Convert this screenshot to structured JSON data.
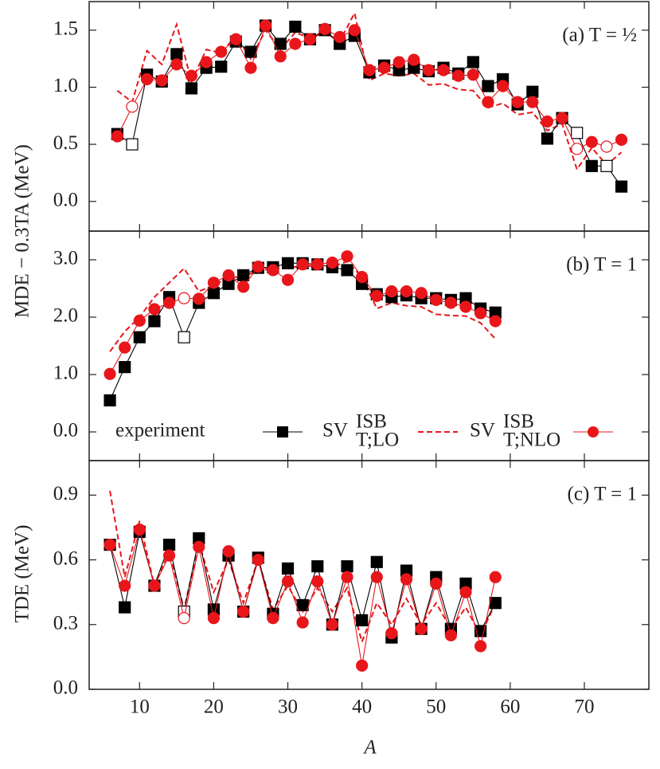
{
  "chart_data": [
    {
      "type": "line",
      "annotation": "(a) T = ½",
      "ylabel": "MDE − 0.3TA (MeV)",
      "xlim": [
        3.2,
        78.7
      ],
      "ylim": [
        -0.26,
        1.75
      ],
      "yticks": [
        {
          "value": 0,
          "label": "0.0"
        },
        0.5,
        {
          "value": 1,
          "label": "1.0"
        },
        1.5
      ],
      "x": [
        7,
        9,
        11,
        13,
        15,
        17,
        19,
        21,
        23,
        25,
        27,
        29,
        31,
        33,
        35,
        37,
        39,
        41,
        43,
        45,
        47,
        49,
        51,
        53,
        55,
        57,
        59,
        61,
        63,
        65,
        67,
        69,
        71,
        73,
        75
      ],
      "series": [
        {
          "style": "dashed",
          "color": "#e8161b",
          "values": [
            0.97,
            0.87,
            1.32,
            1.2,
            1.55,
            1.05,
            1.33,
            1.3,
            1.45,
            1.25,
            1.5,
            1.33,
            1.48,
            1.43,
            1.48,
            1.4,
            1.65,
            1.06,
            1.12,
            1.1,
            1.12,
            1.02,
            1.03,
            0.98,
            0.97,
            0.82,
            0.86,
            0.76,
            0.78,
            0.62,
            0.68,
            0.28,
            0.47,
            0.32,
            0.43
          ]
        },
        {
          "style": "square",
          "color": "#000000",
          "hollow": [
            1,
            31,
            33
          ],
          "values": [
            0.59,
            0.5,
            1.11,
            1.05,
            1.29,
            0.99,
            1.17,
            1.18,
            1.4,
            1.31,
            1.54,
            1.38,
            1.53,
            1.42,
            1.5,
            1.38,
            1.45,
            1.13,
            1.19,
            1.15,
            1.17,
            1.14,
            1.17,
            1.12,
            1.22,
            1.01,
            1.07,
            0.85,
            0.96,
            0.55,
            0.73,
            0.6,
            0.31,
            0.31,
            0.13
          ]
        },
        {
          "style": "circle",
          "color": "#e8161b",
          "hollow": [
            1,
            31,
            33
          ],
          "values": [
            0.57,
            0.83,
            1.07,
            1.06,
            1.2,
            1.1,
            1.22,
            1.31,
            1.42,
            1.17,
            1.54,
            1.27,
            1.38,
            1.42,
            1.51,
            1.44,
            1.5,
            1.15,
            1.17,
            1.22,
            1.24,
            1.15,
            1.15,
            1.1,
            1.11,
            0.87,
            1.01,
            0.87,
            0.87,
            0.7,
            0.73,
            0.46,
            0.52,
            0.48,
            0.54
          ]
        }
      ]
    },
    {
      "type": "line",
      "annotation": "(b) T = 1",
      "legend": "bottom-left",
      "xlim": [
        3.2,
        78.7
      ],
      "ylim": [
        -0.5,
        3.5
      ],
      "yticks": [
        {
          "value": 0,
          "label": "0.0"
        },
        {
          "value": 1,
          "label": "1.0"
        },
        {
          "value": 2,
          "label": "2.0"
        },
        {
          "value": 3,
          "label": "3.0"
        }
      ],
      "x": [
        6,
        8,
        10,
        12,
        14,
        16,
        18,
        20,
        22,
        24,
        26,
        28,
        30,
        32,
        34,
        36,
        38,
        40,
        42,
        44,
        46,
        48,
        50,
        52,
        54,
        56,
        58
      ],
      "series": [
        {
          "name": "SV",
          "name_sup": "ISB",
          "name_sub": "T;LO",
          "style": "dashed",
          "color": "#e8161b",
          "values": [
            1.4,
            1.75,
            2.0,
            2.35,
            2.6,
            2.85,
            2.45,
            2.55,
            2.7,
            2.7,
            2.82,
            2.83,
            2.87,
            2.88,
            2.9,
            2.88,
            2.97,
            2.7,
            2.15,
            2.25,
            2.2,
            2.18,
            2.05,
            2.03,
            2.02,
            1.9,
            1.62
          ]
        },
        {
          "name": "experiment",
          "style": "square",
          "color": "#000000",
          "hollow": [
            5
          ],
          "values": [
            0.55,
            1.13,
            1.65,
            1.93,
            2.35,
            1.65,
            2.25,
            2.42,
            2.58,
            2.73,
            2.86,
            2.87,
            2.94,
            2.94,
            2.92,
            2.87,
            2.82,
            2.58,
            2.4,
            2.35,
            2.38,
            2.33,
            2.33,
            2.3,
            2.33,
            2.15,
            2.08
          ]
        },
        {
          "name": "SV",
          "name_sup": "ISB",
          "name_sub": "T;NLO",
          "style": "circle",
          "color": "#e8161b",
          "hollow": [
            5
          ],
          "values": [
            1.01,
            1.47,
            1.94,
            2.14,
            2.25,
            2.33,
            2.32,
            2.6,
            2.73,
            2.53,
            2.88,
            2.82,
            2.65,
            2.92,
            2.92,
            2.95,
            3.06,
            2.7,
            2.37,
            2.45,
            2.45,
            2.42,
            2.3,
            2.25,
            2.18,
            2.07,
            1.93
          ]
        }
      ]
    },
    {
      "type": "line",
      "annotation": "(c) T = 1",
      "ylabel": "TDE (MeV)",
      "xlabel": "A",
      "xlim": [
        3.2,
        78.7
      ],
      "ylim": [
        0,
        1.06
      ],
      "xticks": [
        10,
        20,
        30,
        40,
        50,
        60,
        70
      ],
      "yticks": [
        {
          "value": 0,
          "label": "0.0"
        },
        0.3,
        0.6,
        0.9
      ],
      "x": [
        6,
        8,
        10,
        12,
        14,
        16,
        18,
        20,
        22,
        24,
        26,
        28,
        30,
        32,
        34,
        36,
        38,
        40,
        42,
        44,
        46,
        48,
        50,
        52,
        54,
        56,
        58
      ],
      "series": [
        {
          "style": "dashed",
          "color": "#e8161b",
          "values": [
            0.92,
            0.52,
            0.78,
            0.48,
            0.64,
            0.37,
            0.68,
            0.45,
            0.6,
            0.4,
            0.6,
            0.37,
            0.48,
            0.36,
            0.47,
            0.36,
            0.47,
            0.22,
            0.4,
            0.3,
            0.42,
            0.3,
            0.4,
            0.28,
            0.38,
            0.25,
            0.4
          ]
        },
        {
          "style": "square",
          "color": "#000000",
          "hollow": [
            5
          ],
          "values": [
            0.67,
            0.38,
            0.73,
            0.48,
            0.67,
            0.36,
            0.7,
            0.37,
            0.62,
            0.36,
            0.61,
            0.35,
            0.56,
            0.39,
            0.57,
            0.3,
            0.57,
            0.32,
            0.59,
            0.24,
            0.55,
            0.28,
            0.52,
            0.28,
            0.49,
            0.27,
            0.4
          ]
        },
        {
          "style": "circle",
          "color": "#e8161b",
          "hollow": [
            5
          ],
          "values": [
            0.67,
            0.48,
            0.74,
            0.48,
            0.62,
            0.33,
            0.66,
            0.33,
            0.64,
            0.36,
            0.6,
            0.33,
            0.5,
            0.31,
            0.5,
            0.3,
            0.52,
            0.11,
            0.52,
            0.26,
            0.51,
            0.28,
            0.49,
            0.25,
            0.45,
            0.2,
            0.52
          ]
        }
      ]
    }
  ]
}
